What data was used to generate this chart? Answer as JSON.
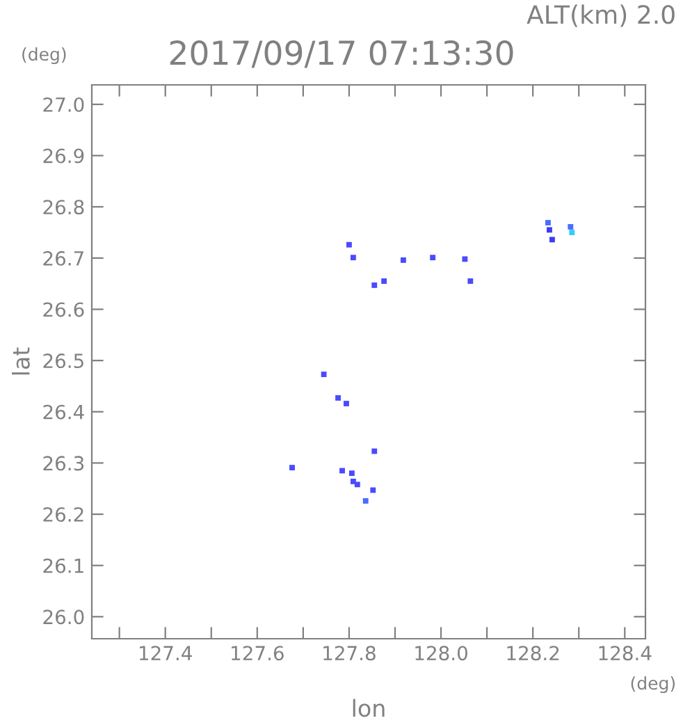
{
  "chart_data": {
    "type": "scatter",
    "title": "2017/09/17 07:13:30",
    "subtitle": "ALT(km) 2.0",
    "xlabel": "lon",
    "ylabel": "lat",
    "annotations": [
      "(deg)",
      "(deg)"
    ],
    "xlim": [
      127.24,
      128.445
    ],
    "ylim": [
      25.957,
      27.038
    ],
    "xticks": [
      {
        "value": 127.3,
        "label": null
      },
      127.4,
      {
        "value": 127.5,
        "label": null
      },
      127.6,
      {
        "value": 127.7,
        "label": null
      },
      127.8,
      {
        "value": 127.9,
        "label": null
      },
      {
        "value": 128.0,
        "label": "128.0"
      },
      {
        "value": 128.1,
        "label": null
      },
      128.2,
      {
        "value": 128.3,
        "label": null
      },
      128.4
    ],
    "yticks": [
      {
        "value": 26.0,
        "label": "26.0"
      },
      26.1,
      26.2,
      26.3,
      26.4,
      26.5,
      26.6,
      26.7,
      26.8,
      26.9,
      {
        "value": 27.0,
        "label": "27.0"
      }
    ],
    "marker": "square",
    "grid": false,
    "series": [
      {
        "x": [
          127.8,
          127.809,
          127.918,
          127.982,
          128.052,
          127.855,
          127.876,
          128.064,
          127.745,
          127.776,
          127.794,
          127.855,
          127.676,
          127.785,
          127.806,
          127.809,
          127.818,
          127.852,
          127.836,
          128.233,
          128.236,
          128.242,
          128.282,
          128.285
        ],
        "values": [
          26.726,
          26.701,
          26.696,
          26.701,
          26.698,
          26.647,
          26.655,
          26.655,
          26.473,
          26.427,
          26.416,
          26.323,
          26.291,
          26.285,
          26.28,
          26.264,
          26.258,
          26.247,
          26.226,
          26.769,
          26.755,
          26.736,
          26.761,
          26.75
        ],
        "colors": [
          "#4a4aff",
          "#4a4aff",
          "#4a4aff",
          "#4a4aff",
          "#4a4aff",
          "#4a4aff",
          "#4a4aff",
          "#4a4aff",
          "#4a4aff",
          "#4a4aff",
          "#4a4aff",
          "#4a4aff",
          "#4a4aff",
          "#4a4aff",
          "#4a4aff",
          "#4a4aff",
          "#4a4aff",
          "#4a4aff",
          "#4a6cff",
          "#4a6cff",
          "#3c3cf0",
          "#3c3cf0",
          "#4a6cff",
          "#33ccff"
        ]
      }
    ]
  }
}
